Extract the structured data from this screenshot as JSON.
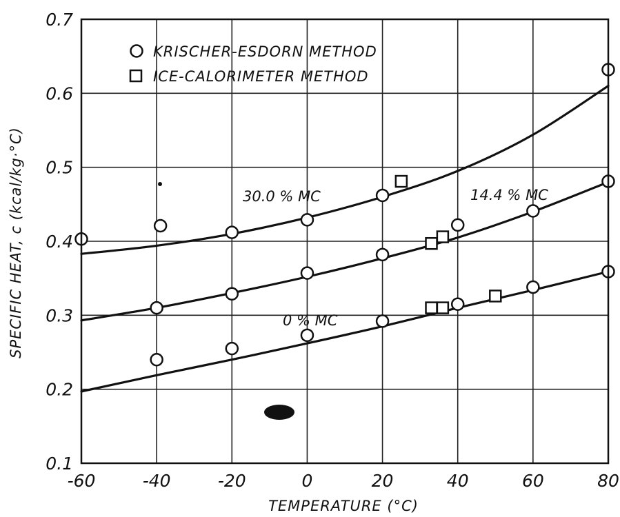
{
  "colors": {
    "ink": "#111111",
    "grid": "#222222",
    "background": "#ffffff"
  },
  "chart_data": {
    "type": "scatter",
    "title": "",
    "xlabel": "TEMPERATURE (°C)",
    "ylabel": "SPECIFIC HEAT, c (kcal/kg·°C)",
    "xlim": [
      -60,
      80
    ],
    "ylim": [
      0.1,
      0.7
    ],
    "xticks": [
      -60,
      -40,
      -20,
      0,
      20,
      40,
      60,
      80
    ],
    "yticks": [
      0.1,
      0.2,
      0.3,
      0.4,
      0.5,
      0.6,
      0.7
    ],
    "xtick_labels": [
      "-60",
      "-40",
      "-20",
      "0",
      "20",
      "40",
      "60",
      "80"
    ],
    "ytick_labels": [
      "0.1",
      "0.2",
      "0.3",
      "0.4",
      "0.5",
      "0.6",
      "0.7"
    ],
    "grid": true,
    "legend_position": "top-left",
    "legend": [
      {
        "marker": "circle",
        "label": "KRISCHER-ESDORN METHOD"
      },
      {
        "marker": "square",
        "label": "ICE-CALORIMETER METHOD"
      }
    ],
    "series": [
      {
        "name": "30.0 % MC",
        "krischer_esdorn": {
          "x": [
            -60,
            -39,
            -20,
            0,
            20,
            80
          ],
          "y": [
            0.403,
            0.421,
            0.412,
            0.429,
            0.462,
            0.632
          ]
        },
        "ice_calorimeter": {
          "x": [
            25
          ],
          "y": [
            0.481
          ]
        },
        "fit_curve": {
          "x": [
            -60,
            -40,
            -20,
            0,
            20,
            40,
            60,
            80
          ],
          "y": [
            0.383,
            0.394,
            0.41,
            0.432,
            0.46,
            0.495,
            0.544,
            0.61
          ]
        }
      },
      {
        "name": "14.4 % MC",
        "krischer_esdorn": {
          "x": [
            -40,
            -20,
            0,
            20,
            40,
            60,
            80
          ],
          "y": [
            0.31,
            0.329,
            0.357,
            0.382,
            0.422,
            0.441,
            0.481
          ]
        },
        "ice_calorimeter": {
          "x": [
            33,
            36
          ],
          "y": [
            0.397,
            0.406
          ]
        },
        "fit_curve": {
          "x": [
            -60,
            -40,
            -20,
            0,
            20,
            40,
            60,
            80
          ],
          "y": [
            0.293,
            0.31,
            0.33,
            0.352,
            0.377,
            0.405,
            0.44,
            0.48
          ]
        }
      },
      {
        "name": "0 % MC",
        "krischer_esdorn": {
          "x": [
            -40,
            -20,
            0,
            20,
            40,
            60,
            80
          ],
          "y": [
            0.24,
            0.255,
            0.273,
            0.292,
            0.315,
            0.338,
            0.359
          ]
        },
        "ice_calorimeter": {
          "x": [
            33,
            36,
            50
          ],
          "y": [
            0.31,
            0.31,
            0.326
          ]
        },
        "fit_curve": {
          "x": [
            -60,
            -40,
            -20,
            0,
            20,
            40,
            60,
            80
          ],
          "y": [
            0.197,
            0.219,
            0.24,
            0.262,
            0.285,
            0.31,
            0.334,
            0.359
          ]
        }
      }
    ]
  }
}
